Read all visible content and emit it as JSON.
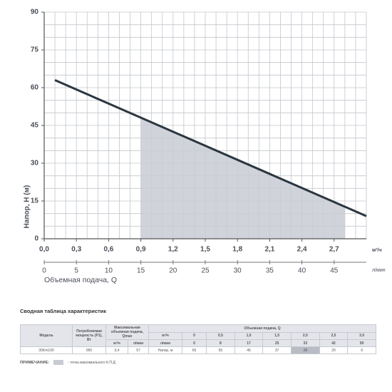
{
  "chart_data": {
    "type": "line",
    "ylabel": "Напор, H (м)",
    "xlabel": "Объемная подача, Q",
    "x_unit": "м³/ч",
    "x2_unit": "л/мин",
    "x": [
      0.1,
      3.0
    ],
    "series": [
      {
        "color": "#2b3640",
        "values": [
          63,
          9
        ]
      }
    ],
    "highlight": {
      "from": 0.9,
      "to": 2.8,
      "color": "#c9cbd3"
    },
    "xlim": [
      0,
      3.0
    ],
    "ylim": [
      0,
      90
    ],
    "xticks": [
      {
        "value": 0,
        "label": "0,0"
      },
      {
        "value": 0.3,
        "label": "0,3"
      },
      {
        "value": 0.6,
        "label": "0,6"
      },
      {
        "value": 0.9,
        "label": "0,9"
      },
      {
        "value": 1.2,
        "label": "1,2"
      },
      {
        "value": 1.5,
        "label": "1,5"
      },
      {
        "value": 1.8,
        "label": "1,8"
      },
      {
        "value": 2.1,
        "label": "2,1"
      },
      {
        "value": 2.4,
        "label": "2,4"
      },
      {
        "value": 2.7,
        "label": "2,7"
      }
    ],
    "x2lim": [
      0,
      50
    ],
    "x2ticks": [
      0,
      5,
      10,
      15,
      20,
      25,
      30,
      35,
      40,
      45
    ],
    "yticks": [
      0,
      15,
      30,
      45,
      60,
      75,
      90
    ],
    "minor_grid": {
      "x": 0.1,
      "y": 5
    },
    "grid": true
  },
  "table": {
    "title": "Сводная таблица характеристик",
    "head": {
      "model": "Модель",
      "power": "Потребляемая мощность (P1), Вт",
      "qmax": "Максимальная объемная подача, Qmax",
      "q": "Объемная подача, Q",
      "unit_m3": "м³/ч",
      "unit_lmin": "л/мин",
      "q_m3": [
        "0",
        "0,5",
        "1,0",
        "1,5",
        "2,0",
        "2,5",
        "3,0"
      ],
      "q_lmin": [
        "0",
        "8",
        "17",
        "25",
        "33",
        "42",
        "50"
      ]
    },
    "row": {
      "model": "35Km100",
      "power": "950",
      "qmax_m3": "3,4",
      "qmax_lmin": "57",
      "label": "Напор, м",
      "head": [
        "65",
        "55",
        "45",
        "37",
        "28",
        "20",
        "9"
      ],
      "highlight_index": 4
    },
    "note": {
      "label": "ПРИМЕЧАНИЕ:",
      "text": "- точка максимального К.П.Д."
    }
  }
}
